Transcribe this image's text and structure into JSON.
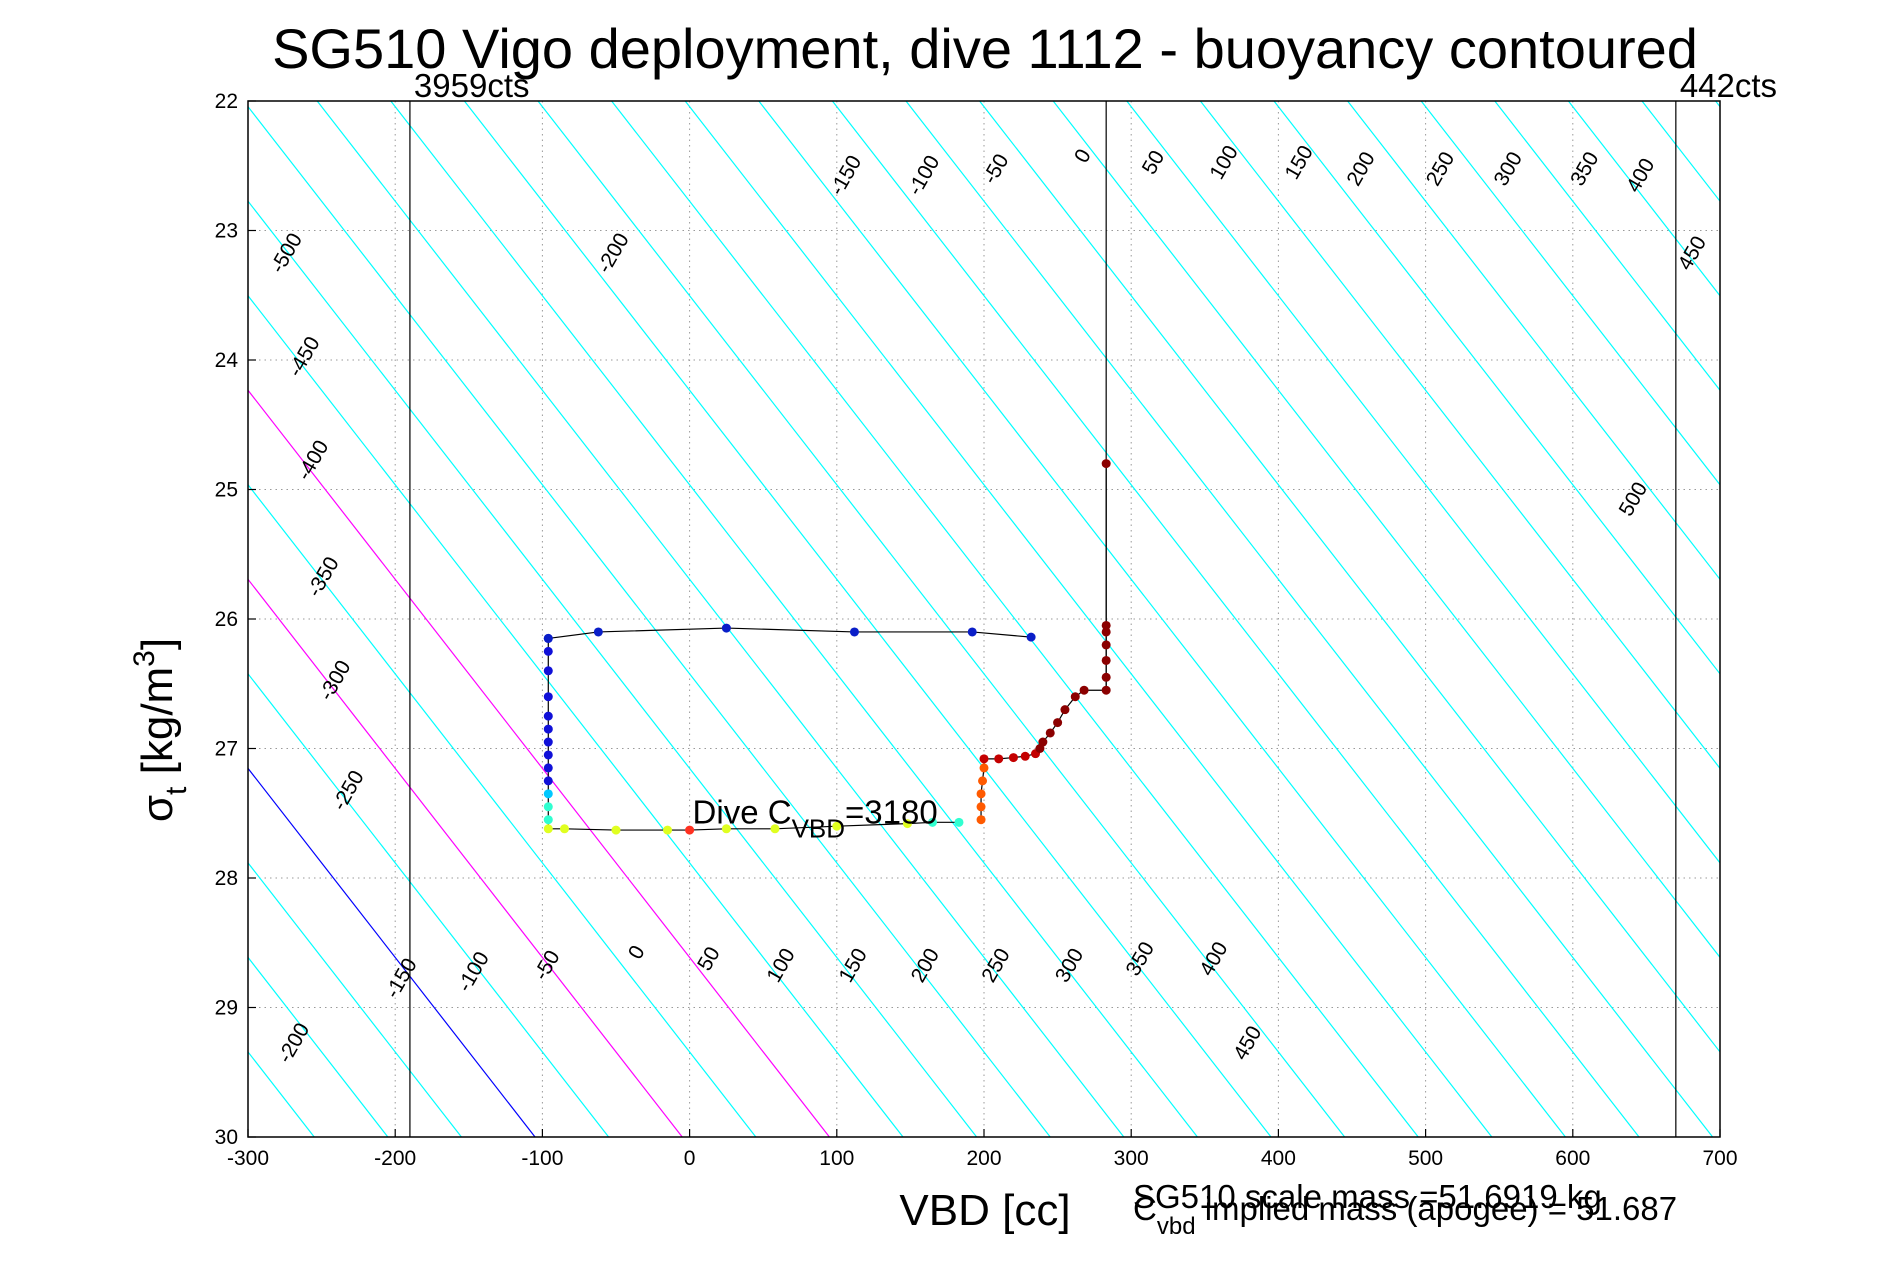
{
  "chart_data": {
    "type": "scatter",
    "title": "SG510 Vigo deployment, dive 1112 - buoyancy contoured",
    "xlabel": "VBD [cc]",
    "ylabel_main": "σ",
    "ylabel_sub": "t",
    "ylabel_units": "[kg/m",
    "ylabel_sup": "3",
    "ylabel_close": "]",
    "xlim": [
      -300,
      700
    ],
    "ylim": [
      22,
      30
    ],
    "y_reversed": true,
    "grid": true,
    "xticks": [
      -300,
      -200,
      -100,
      0,
      100,
      200,
      300,
      400,
      500,
      600,
      700
    ],
    "yticks": [
      22,
      23,
      24,
      25,
      26,
      27,
      28,
      29,
      30
    ],
    "vbd_limits": [
      {
        "x": -190,
        "label": "3959cts"
      },
      {
        "x": 670,
        "label": "442cts"
      }
    ],
    "mass_lines": [
      {
        "x_at_top": 283,
        "x_at_bottom": 283,
        "color": "#000000"
      }
    ],
    "contour_lines": {
      "color": "#00ffff",
      "spacing_cc": 50,
      "slope_cc_per_sigma": 68.5,
      "zero_line_x_at_sigma30": -105,
      "zero_line_color": "#0000ff",
      "highlight_lines": [
        {
          "offset": 100,
          "color": "#ff00ff"
        },
        {
          "offset": 200,
          "color": "#ff00ff"
        }
      ]
    },
    "contour_labels_top": [
      {
        "text": "-500",
        "x": -270,
        "y": 23.2
      },
      {
        "text": "-450",
        "x": -258,
        "y": 24.0
      },
      {
        "text": "-400",
        "x": -252,
        "y": 24.8
      },
      {
        "text": "-350",
        "x": -245,
        "y": 25.7
      },
      {
        "text": "-300",
        "x": -237,
        "y": 26.5
      },
      {
        "text": "-250",
        "x": -228,
        "y": 27.35
      },
      {
        "text": "-200",
        "x": -48,
        "y": 23.2
      },
      {
        "text": "-150",
        "x": 110,
        "y": 22.6
      },
      {
        "text": "-100",
        "x": 163,
        "y": 22.6
      },
      {
        "text": "-50",
        "x": 212,
        "y": 22.55
      },
      {
        "text": "0",
        "x": 271,
        "y": 22.45
      },
      {
        "text": "50",
        "x": 319,
        "y": 22.5
      },
      {
        "text": "100",
        "x": 367,
        "y": 22.5
      },
      {
        "text": "150",
        "x": 418,
        "y": 22.5
      },
      {
        "text": "200",
        "x": 460,
        "y": 22.55
      },
      {
        "text": "250",
        "x": 514,
        "y": 22.55
      },
      {
        "text": "300",
        "x": 560,
        "y": 22.55
      },
      {
        "text": "350",
        "x": 612,
        "y": 22.55
      },
      {
        "text": "400",
        "x": 650,
        "y": 22.6
      },
      {
        "text": "450",
        "x": 685,
        "y": 23.2
      },
      {
        "text": "500",
        "x": 645,
        "y": 25.1
      }
    ],
    "contour_labels_bottom": [
      {
        "text": "-200",
        "x": -265,
        "y": 29.3
      },
      {
        "text": "-150",
        "x": -192,
        "y": 28.8
      },
      {
        "text": "-100",
        "x": -143,
        "y": 28.75
      },
      {
        "text": "-50",
        "x": -93,
        "y": 28.7
      },
      {
        "text": "0",
        "x": -32,
        "y": 28.6
      },
      {
        "text": "50",
        "x": 17,
        "y": 28.65
      },
      {
        "text": "100",
        "x": 66,
        "y": 28.7
      },
      {
        "text": "150",
        "x": 115,
        "y": 28.7
      },
      {
        "text": "200",
        "x": 164,
        "y": 28.7
      },
      {
        "text": "250",
        "x": 212,
        "y": 28.7
      },
      {
        "text": "300",
        "x": 262,
        "y": 28.7
      },
      {
        "text": "350",
        "x": 310,
        "y": 28.65
      },
      {
        "text": "400",
        "x": 360,
        "y": 28.65
      },
      {
        "text": "450",
        "x": 383,
        "y": 29.3
      }
    ],
    "dive_path": [
      [
        -96,
        26.15
      ],
      [
        -96,
        26.25
      ],
      [
        -96,
        26.4
      ],
      [
        -96,
        26.6
      ],
      [
        -96,
        26.75
      ],
      [
        -96,
        26.85
      ],
      [
        -96,
        26.95
      ],
      [
        -96,
        27.05
      ],
      [
        -96,
        27.15
      ],
      [
        -96,
        27.25
      ],
      [
        -96,
        27.35
      ],
      [
        -96,
        27.45
      ],
      [
        -96,
        27.55
      ],
      [
        -96,
        27.62
      ],
      [
        -85,
        27.62
      ],
      [
        -50,
        27.63
      ],
      [
        -15,
        27.63
      ],
      [
        0,
        27.63
      ],
      [
        25,
        27.62
      ],
      [
        58,
        27.62
      ],
      [
        100,
        27.6
      ],
      [
        148,
        27.58
      ],
      [
        165,
        27.57
      ],
      [
        183,
        27.57
      ]
    ],
    "climb_path": [
      [
        198,
        27.55
      ],
      [
        198,
        27.45
      ],
      [
        198,
        27.35
      ],
      [
        199,
        27.25
      ],
      [
        200,
        27.15
      ],
      [
        200,
        27.08
      ],
      [
        210,
        27.08
      ],
      [
        220,
        27.07
      ],
      [
        228,
        27.06
      ],
      [
        235,
        27.04
      ],
      [
        238,
        27.0
      ],
      [
        240,
        26.95
      ],
      [
        245,
        26.88
      ],
      [
        250,
        26.8
      ],
      [
        255,
        26.7
      ],
      [
        262,
        26.6
      ],
      [
        268,
        26.55
      ],
      [
        283,
        26.55
      ],
      [
        283,
        26.45
      ],
      [
        283,
        26.32
      ],
      [
        283,
        26.2
      ],
      [
        283,
        26.1
      ],
      [
        283,
        26.05
      ],
      [
        283,
        24.8
      ]
    ],
    "apogee_path": [
      [
        -96,
        26.15
      ],
      [
        -62,
        26.1
      ],
      [
        25,
        26.07
      ],
      [
        112,
        26.1
      ],
      [
        192,
        26.1
      ],
      [
        232,
        26.14
      ]
    ],
    "annotation": {
      "prefix": "Dive C",
      "sub": "VBD",
      "suffix": "=3180",
      "x": 2,
      "y": 27.5
    },
    "footer": {
      "scale_mass": "SG510 scale mass =51.6919 kg",
      "implied_prefix": "C",
      "implied_sub": "vbd",
      "implied_suffix": " implied mass (apogee) = 51.687"
    }
  }
}
